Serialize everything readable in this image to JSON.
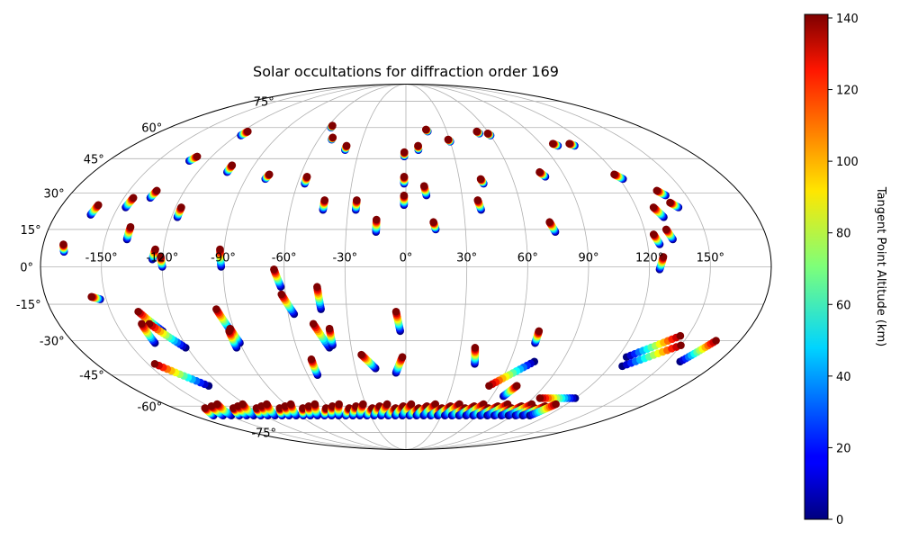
{
  "chart_data": {
    "type": "scatter",
    "projection": "mollweide",
    "title": "Solar occultations for diffraction order 169",
    "x_ticks": [
      "-150°",
      "-120°",
      "-90°",
      "-60°",
      "-30°",
      "0°",
      "30°",
      "60°",
      "90°",
      "120°",
      "150°"
    ],
    "x_tick_values": [
      -150,
      -120,
      -90,
      -60,
      -30,
      0,
      30,
      60,
      90,
      120,
      150
    ],
    "y_ticks": [
      "-75°",
      "-60°",
      "-45°",
      "-30°",
      "-15°",
      "0°",
      "15°",
      "30°",
      "45°",
      "60°",
      "75°"
    ],
    "y_tick_values": [
      -75,
      -60,
      -45,
      -30,
      -15,
      0,
      15,
      30,
      45,
      60,
      75
    ],
    "colorbar": {
      "label": "Tangent Point Altitude (km)",
      "colormap": "jet",
      "range": [
        0,
        141
      ],
      "ticks": [
        "0",
        "20",
        "40",
        "60",
        "80",
        "100",
        "120",
        "140"
      ],
      "tick_values": [
        0,
        20,
        40,
        60,
        80,
        100,
        120,
        140
      ]
    },
    "altitude_range_km": [
      0,
      141
    ],
    "tracks": [
      [
        -169,
        6,
        -170,
        9
      ],
      [
        -162,
        21,
        -161,
        25
      ],
      [
        -146,
        24,
        -145,
        28
      ],
      [
        -139,
        11,
        -139,
        16
      ],
      [
        -136,
        28,
        -135,
        31
      ],
      [
        -131,
        44,
        -129,
        46
      ],
      [
        -125,
        3,
        -124,
        7
      ],
      [
        -120,
        0,
        -121,
        4
      ],
      [
        -117,
        20,
        -117,
        24
      ],
      [
        -117,
        56,
        -116,
        58
      ],
      [
        -103,
        39,
        -103,
        42
      ],
      [
        -91,
        0,
        -92,
        7
      ],
      [
        -79,
        36,
        -78,
        38
      ],
      [
        -57,
        60,
        -57,
        61
      ],
      [
        -56,
        34,
        -56,
        37
      ],
      [
        -51,
        54,
        -51,
        55
      ],
      [
        -43,
        23,
        -43,
        27
      ],
      [
        -39,
        49,
        -39,
        51
      ],
      [
        -26,
        23,
        -26,
        27
      ],
      [
        -15,
        14,
        -15,
        19
      ],
      [
        -1,
        25,
        -1,
        29
      ],
      [
        -1,
        34,
        -1,
        37
      ],
      [
        -1,
        46,
        -1,
        48
      ],
      [
        8,
        49,
        8,
        51
      ],
      [
        11,
        29,
        10,
        33
      ],
      [
        15,
        15,
        14,
        18
      ],
      [
        16,
        58,
        15,
        59
      ],
      [
        30,
        53,
        29,
        54
      ],
      [
        39,
        23,
        38,
        27
      ],
      [
        43,
        34,
        42,
        36
      ],
      [
        53,
        57,
        52,
        58
      ],
      [
        60,
        56,
        59,
        57
      ],
      [
        75,
        14,
        73,
        18
      ],
      [
        79,
        37,
        77,
        39
      ],
      [
        100,
        51,
        98,
        52
      ],
      [
        111,
        51,
        109,
        52
      ],
      [
        122,
        36,
        119,
        38
      ],
      [
        126,
        9,
        124,
        13
      ],
      [
        125,
        -1,
        127,
        4
      ],
      [
        132,
        20,
        129,
        24
      ],
      [
        133,
        11,
        131,
        15
      ],
      [
        139,
        29,
        136,
        31
      ],
      [
        142,
        24,
        139,
        26
      ],
      [
        -153,
        -13,
        -157,
        -12
      ],
      [
        -128,
        -26,
        -136,
        -18
      ],
      [
        -121,
        -33,
        -133,
        -23
      ],
      [
        -136,
        -31,
        -137,
        -23
      ],
      [
        -128,
        -50,
        -146,
        -40
      ],
      [
        -92,
        -26,
        -96,
        -17
      ],
      [
        -90,
        -31,
        -92,
        -25
      ],
      [
        -93,
        -33,
        -93,
        -26
      ],
      [
        -62,
        -8,
        -65,
        -1
      ],
      [
        -57,
        -19,
        -62,
        -11
      ],
      [
        -43,
        -17,
        -44,
        -8
      ],
      [
        -42,
        -33,
        -48,
        -23
      ],
      [
        -40,
        -32,
        -40,
        -25
      ],
      [
        -3,
        -26,
        -5,
        -18
      ],
      [
        -18,
        -42,
        -25,
        -36
      ],
      [
        -6,
        -44,
        -2,
        -37
      ],
      [
        -54,
        -45,
        -54,
        -38
      ],
      [
        74,
        -39,
        54,
        -50
      ],
      [
        70,
        -31,
        70,
        -26
      ],
      [
        40,
        -40,
        38,
        -33
      ],
      [
        125,
        -37,
        146,
        -28
      ],
      [
        127,
        -41,
        150,
        -32
      ],
      [
        158,
        -39,
        167,
        -30
      ],
      [
        120,
        -56,
        95,
        -56
      ],
      [
        68,
        -55,
        72,
        -50
      ]
    ],
    "south_cluster_longitudes": [
      -160,
      -152,
      -145,
      -138,
      -132,
      -126,
      -120,
      -114,
      -108,
      -102,
      -96,
      -90,
      -84,
      -78,
      -72,
      -66,
      -60,
      -54,
      -48,
      -42,
      -36,
      -30,
      -24,
      -18,
      -12,
      -6,
      0,
      6,
      12,
      18,
      24,
      30,
      36,
      42,
      48,
      54,
      60,
      66,
      72,
      78,
      84,
      90,
      96,
      102,
      108
    ],
    "south_cluster_latitude": -64
  }
}
